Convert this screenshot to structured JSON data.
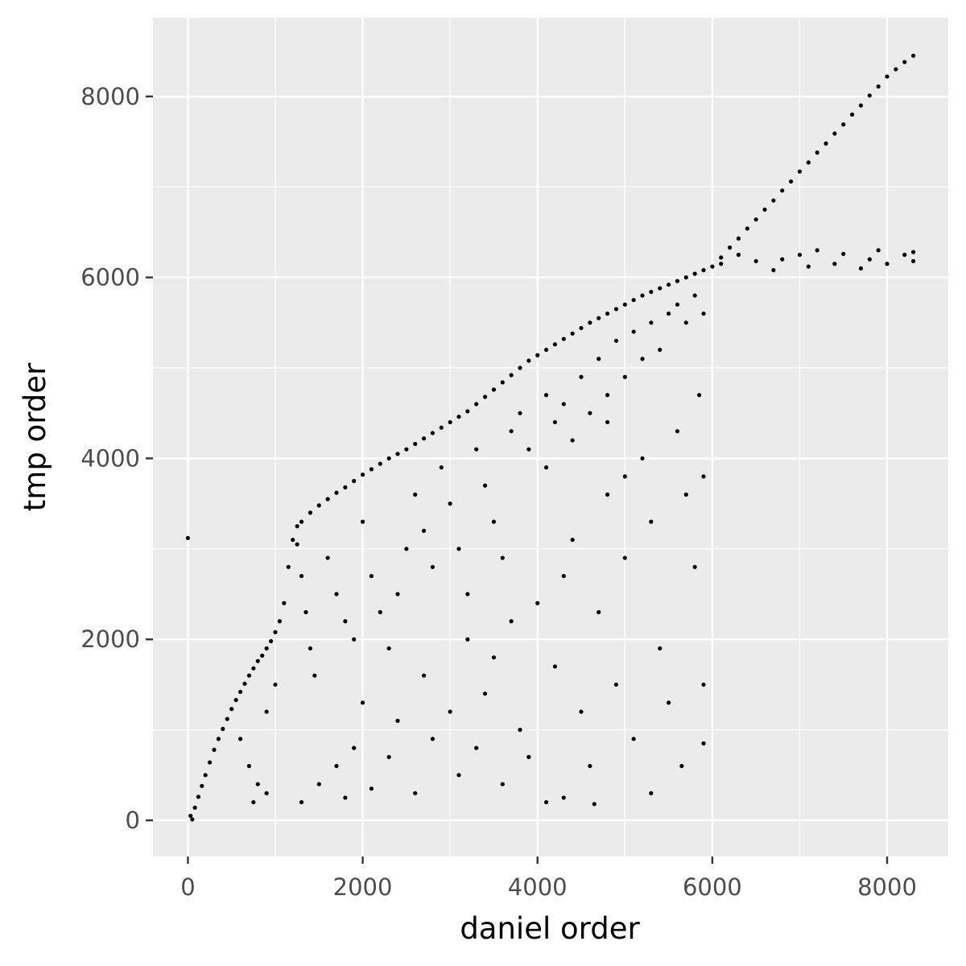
{
  "chart_data": {
    "type": "scatter",
    "title": "",
    "xlabel": "daniel order",
    "ylabel": "tmp order",
    "xlim": [
      -400,
      8700
    ],
    "ylim": [
      -400,
      8870
    ],
    "x_ticks": [
      0,
      2000,
      4000,
      6000,
      8000
    ],
    "y_ticks": [
      0,
      2000,
      4000,
      6000,
      8000
    ],
    "x_tick_labels": [
      "0",
      "2000",
      "4000",
      "6000",
      "8000"
    ],
    "y_tick_labels": [
      "0",
      "2000",
      "4000",
      "6000",
      "8000"
    ],
    "grid": true,
    "legend": "none",
    "colors": {
      "panel_background": "#ebebeb",
      "grid": "#ffffff",
      "point": "#000000",
      "tick_text": "#4d4d4d",
      "axis_title": "#000000"
    },
    "series": [
      {
        "values": [
          {
            "x": 0,
            "y": 3120
          },
          {
            "x": 30,
            "y": 50
          },
          {
            "x": 50,
            "y": 10
          },
          {
            "x": 80,
            "y": 140
          },
          {
            "x": 120,
            "y": 260
          },
          {
            "x": 160,
            "y": 380
          },
          {
            "x": 200,
            "y": 500
          },
          {
            "x": 250,
            "y": 640
          },
          {
            "x": 300,
            "y": 780
          },
          {
            "x": 350,
            "y": 900
          },
          {
            "x": 400,
            "y": 1010
          },
          {
            "x": 450,
            "y": 1120
          },
          {
            "x": 500,
            "y": 1230
          },
          {
            "x": 550,
            "y": 1330
          },
          {
            "x": 600,
            "y": 1420
          },
          {
            "x": 650,
            "y": 1510
          },
          {
            "x": 700,
            "y": 1600
          },
          {
            "x": 750,
            "y": 1680
          },
          {
            "x": 800,
            "y": 1760
          },
          {
            "x": 850,
            "y": 1820
          },
          {
            "x": 900,
            "y": 1900
          },
          {
            "x": 950,
            "y": 1980
          },
          {
            "x": 1000,
            "y": 2080
          },
          {
            "x": 1050,
            "y": 2200
          },
          {
            "x": 1100,
            "y": 2400
          },
          {
            "x": 1150,
            "y": 2800
          },
          {
            "x": 1200,
            "y": 3100
          },
          {
            "x": 1250,
            "y": 3250
          },
          {
            "x": 1300,
            "y": 3300
          },
          {
            "x": 1400,
            "y": 3400
          },
          {
            "x": 1500,
            "y": 3480
          },
          {
            "x": 1600,
            "y": 3550
          },
          {
            "x": 1700,
            "y": 3620
          },
          {
            "x": 1800,
            "y": 3680
          },
          {
            "x": 1900,
            "y": 3750
          },
          {
            "x": 2000,
            "y": 3820
          },
          {
            "x": 2100,
            "y": 3880
          },
          {
            "x": 2200,
            "y": 3940
          },
          {
            "x": 2300,
            "y": 4000
          },
          {
            "x": 2400,
            "y": 4050
          },
          {
            "x": 2500,
            "y": 4100
          },
          {
            "x": 2600,
            "y": 4160
          },
          {
            "x": 2700,
            "y": 4220
          },
          {
            "x": 2800,
            "y": 4280
          },
          {
            "x": 2900,
            "y": 4340
          },
          {
            "x": 3000,
            "y": 4400
          },
          {
            "x": 3100,
            "y": 4460
          },
          {
            "x": 3200,
            "y": 4520
          },
          {
            "x": 3300,
            "y": 4600
          },
          {
            "x": 3400,
            "y": 4680
          },
          {
            "x": 3500,
            "y": 4760
          },
          {
            "x": 3600,
            "y": 4840
          },
          {
            "x": 3700,
            "y": 4920
          },
          {
            "x": 3800,
            "y": 5000
          },
          {
            "x": 3900,
            "y": 5080
          },
          {
            "x": 4000,
            "y": 5140
          },
          {
            "x": 4100,
            "y": 5200
          },
          {
            "x": 4200,
            "y": 5260
          },
          {
            "x": 4300,
            "y": 5320
          },
          {
            "x": 4400,
            "y": 5380
          },
          {
            "x": 4500,
            "y": 5440
          },
          {
            "x": 4600,
            "y": 5500
          },
          {
            "x": 4700,
            "y": 5550
          },
          {
            "x": 4800,
            "y": 5600
          },
          {
            "x": 4900,
            "y": 5650
          },
          {
            "x": 5000,
            "y": 5700
          },
          {
            "x": 5100,
            "y": 5750
          },
          {
            "x": 5200,
            "y": 5800
          },
          {
            "x": 5300,
            "y": 5840
          },
          {
            "x": 5400,
            "y": 5880
          },
          {
            "x": 5500,
            "y": 5920
          },
          {
            "x": 5600,
            "y": 5960
          },
          {
            "x": 5700,
            "y": 6000
          },
          {
            "x": 5800,
            "y": 6040
          },
          {
            "x": 5900,
            "y": 6080
          },
          {
            "x": 6000,
            "y": 6120
          },
          {
            "x": 6100,
            "y": 6220
          },
          {
            "x": 6200,
            "y": 6330
          },
          {
            "x": 6300,
            "y": 6430
          },
          {
            "x": 6400,
            "y": 6540
          },
          {
            "x": 6500,
            "y": 6640
          },
          {
            "x": 6600,
            "y": 6750
          },
          {
            "x": 6700,
            "y": 6850
          },
          {
            "x": 6800,
            "y": 6960
          },
          {
            "x": 6900,
            "y": 7060
          },
          {
            "x": 7000,
            "y": 7170
          },
          {
            "x": 7100,
            "y": 7270
          },
          {
            "x": 7200,
            "y": 7380
          },
          {
            "x": 7300,
            "y": 7480
          },
          {
            "x": 7400,
            "y": 7590
          },
          {
            "x": 7500,
            "y": 7690
          },
          {
            "x": 7600,
            "y": 7800
          },
          {
            "x": 7700,
            "y": 7900
          },
          {
            "x": 7800,
            "y": 8010
          },
          {
            "x": 7900,
            "y": 8110
          },
          {
            "x": 8000,
            "y": 8220
          },
          {
            "x": 8100,
            "y": 8300
          },
          {
            "x": 8200,
            "y": 8380
          },
          {
            "x": 8300,
            "y": 8450
          },
          {
            "x": 1250,
            "y": 3050
          },
          {
            "x": 1300,
            "y": 2700
          },
          {
            "x": 1350,
            "y": 2300
          },
          {
            "x": 1400,
            "y": 1900
          },
          {
            "x": 1450,
            "y": 1600
          },
          {
            "x": 1600,
            "y": 2900
          },
          {
            "x": 1700,
            "y": 2500
          },
          {
            "x": 1800,
            "y": 2200
          },
          {
            "x": 1900,
            "y": 2000
          },
          {
            "x": 2000,
            "y": 3300
          },
          {
            "x": 2100,
            "y": 2700
          },
          {
            "x": 2200,
            "y": 2300
          },
          {
            "x": 2300,
            "y": 1900
          },
          {
            "x": 2400,
            "y": 2500
          },
          {
            "x": 2500,
            "y": 3000
          },
          {
            "x": 2600,
            "y": 3600
          },
          {
            "x": 2700,
            "y": 3200
          },
          {
            "x": 2800,
            "y": 2800
          },
          {
            "x": 2900,
            "y": 3900
          },
          {
            "x": 3000,
            "y": 3500
          },
          {
            "x": 3100,
            "y": 3000
          },
          {
            "x": 3200,
            "y": 2500
          },
          {
            "x": 3300,
            "y": 4100
          },
          {
            "x": 3400,
            "y": 3700
          },
          {
            "x": 3500,
            "y": 3300
          },
          {
            "x": 3600,
            "y": 2900
          },
          {
            "x": 3700,
            "y": 4300
          },
          {
            "x": 3800,
            "y": 4500
          },
          {
            "x": 3900,
            "y": 4100
          },
          {
            "x": 4100,
            "y": 4700
          },
          {
            "x": 4200,
            "y": 4400
          },
          {
            "x": 4300,
            "y": 4600
          },
          {
            "x": 4500,
            "y": 4900
          },
          {
            "x": 4600,
            "y": 4500
          },
          {
            "x": 4700,
            "y": 5100
          },
          {
            "x": 4800,
            "y": 4700
          },
          {
            "x": 4900,
            "y": 5300
          },
          {
            "x": 5000,
            "y": 4900
          },
          {
            "x": 5100,
            "y": 5400
          },
          {
            "x": 5200,
            "y": 5100
          },
          {
            "x": 5300,
            "y": 5500
          },
          {
            "x": 5400,
            "y": 5200
          },
          {
            "x": 5500,
            "y": 5600
          },
          {
            "x": 5600,
            "y": 5700
          },
          {
            "x": 5700,
            "y": 5500
          },
          {
            "x": 5800,
            "y": 5800
          },
          {
            "x": 5900,
            "y": 5600
          },
          {
            "x": 600,
            "y": 900
          },
          {
            "x": 700,
            "y": 600
          },
          {
            "x": 800,
            "y": 400
          },
          {
            "x": 900,
            "y": 1200
          },
          {
            "x": 1000,
            "y": 1500
          },
          {
            "x": 750,
            "y": 200
          },
          {
            "x": 900,
            "y": 300
          },
          {
            "x": 1300,
            "y": 200
          },
          {
            "x": 1500,
            "y": 400
          },
          {
            "x": 1700,
            "y": 600
          },
          {
            "x": 1800,
            "y": 250
          },
          {
            "x": 1900,
            "y": 800
          },
          {
            "x": 2000,
            "y": 1300
          },
          {
            "x": 2100,
            "y": 350
          },
          {
            "x": 2300,
            "y": 700
          },
          {
            "x": 2400,
            "y": 1100
          },
          {
            "x": 2600,
            "y": 300
          },
          {
            "x": 2700,
            "y": 1600
          },
          {
            "x": 2800,
            "y": 900
          },
          {
            "x": 3000,
            "y": 1200
          },
          {
            "x": 3100,
            "y": 500
          },
          {
            "x": 3200,
            "y": 2000
          },
          {
            "x": 3300,
            "y": 800
          },
          {
            "x": 3400,
            "y": 1400
          },
          {
            "x": 3500,
            "y": 1800
          },
          {
            "x": 3600,
            "y": 400
          },
          {
            "x": 3700,
            "y": 2200
          },
          {
            "x": 3800,
            "y": 1000
          },
          {
            "x": 3900,
            "y": 700
          },
          {
            "x": 4100,
            "y": 200
          },
          {
            "x": 4200,
            "y": 1700
          },
          {
            "x": 4300,
            "y": 2700
          },
          {
            "x": 4400,
            "y": 3100
          },
          {
            "x": 4500,
            "y": 1200
          },
          {
            "x": 4600,
            "y": 600
          },
          {
            "x": 4700,
            "y": 2300
          },
          {
            "x": 4800,
            "y": 3600
          },
          {
            "x": 4900,
            "y": 1500
          },
          {
            "x": 5000,
            "y": 2900
          },
          {
            "x": 5100,
            "y": 900
          },
          {
            "x": 5200,
            "y": 4000
          },
          {
            "x": 5300,
            "y": 3300
          },
          {
            "x": 5400,
            "y": 1900
          },
          {
            "x": 5500,
            "y": 1300
          },
          {
            "x": 5600,
            "y": 4300
          },
          {
            "x": 5700,
            "y": 3600
          },
          {
            "x": 5800,
            "y": 2800
          },
          {
            "x": 5850,
            "y": 4700
          },
          {
            "x": 5900,
            "y": 1500
          },
          {
            "x": 5900,
            "y": 3800
          },
          {
            "x": 5900,
            "y": 850
          },
          {
            "x": 5650,
            "y": 600
          },
          {
            "x": 5300,
            "y": 300
          },
          {
            "x": 4650,
            "y": 180
          },
          {
            "x": 4300,
            "y": 250
          },
          {
            "x": 4000,
            "y": 2400
          },
          {
            "x": 4100,
            "y": 3900
          },
          {
            "x": 4400,
            "y": 4200
          },
          {
            "x": 4800,
            "y": 4400
          },
          {
            "x": 5000,
            "y": 3800
          },
          {
            "x": 6100,
            "y": 6150
          },
          {
            "x": 6300,
            "y": 6250
          },
          {
            "x": 6500,
            "y": 6180
          },
          {
            "x": 6700,
            "y": 6080
          },
          {
            "x": 6800,
            "y": 6200
          },
          {
            "x": 7000,
            "y": 6250
          },
          {
            "x": 7100,
            "y": 6120
          },
          {
            "x": 7200,
            "y": 6300
          },
          {
            "x": 7400,
            "y": 6150
          },
          {
            "x": 7500,
            "y": 6260
          },
          {
            "x": 7700,
            "y": 6100
          },
          {
            "x": 7800,
            "y": 6200
          },
          {
            "x": 7900,
            "y": 6300
          },
          {
            "x": 8000,
            "y": 6150
          },
          {
            "x": 8200,
            "y": 6250
          },
          {
            "x": 8300,
            "y": 6180
          },
          {
            "x": 8300,
            "y": 6280
          }
        ]
      }
    ]
  }
}
